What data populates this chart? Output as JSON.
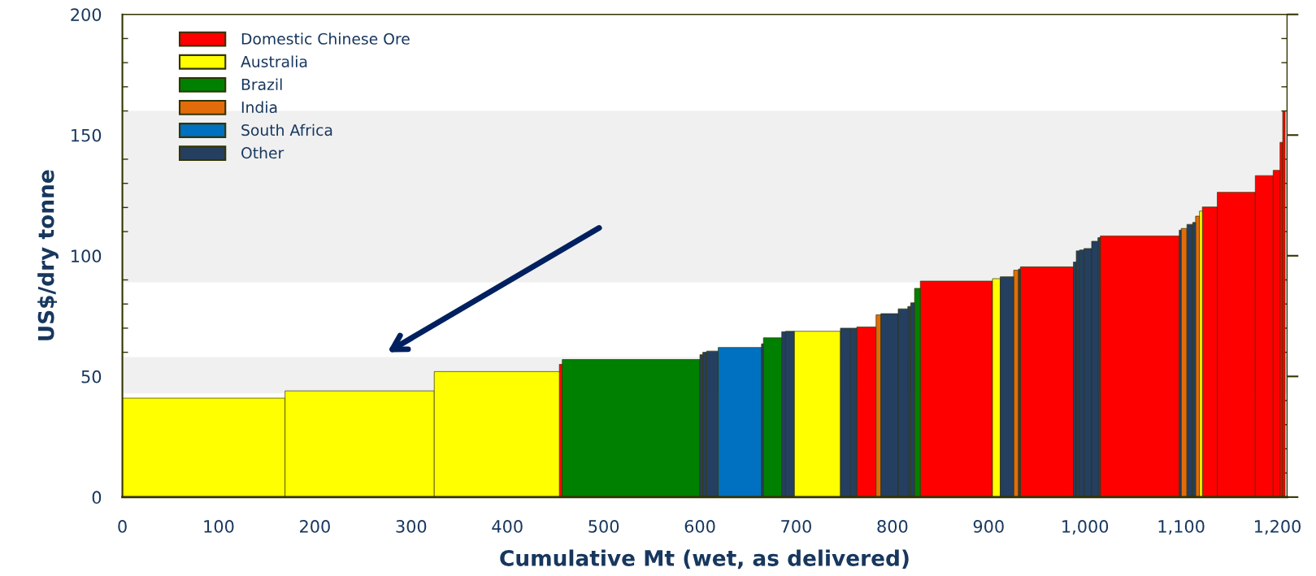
{
  "chart_data": {
    "type": "histogram",
    "xlabel": "Cumulative Mt (wet, as delivered)",
    "ylabel": "US$/dry tonne",
    "bins": [
      0,
      169,
      324,
      454,
      457,
      600,
      603,
      607,
      619,
      664,
      666,
      685,
      689,
      698,
      746,
      756,
      763,
      783,
      788,
      806,
      816,
      819,
      823,
      829,
      904,
      912,
      926,
      931,
      933,
      988,
      991,
      994.5,
      999,
      1007,
      1013.5,
      1016,
      1098,
      1100,
      1106,
      1112,
      1115,
      1119,
      1122,
      1137.5,
      1177,
      1195.6,
      1202.7,
      1205.5,
      1208
    ],
    "series": [
      {
        "name": "Domestic Chinese Ore",
        "color": "#ff0000",
        "values": [
          null,
          null,
          null,
          55,
          null,
          null,
          null,
          null,
          null,
          null,
          null,
          null,
          null,
          null,
          null,
          null,
          70.5,
          null,
          null,
          null,
          null,
          null,
          null,
          89.5,
          null,
          null,
          null,
          null,
          95.4,
          null,
          null,
          null,
          null,
          null,
          null,
          108.2,
          null,
          null,
          null,
          null,
          null,
          null,
          120.2,
          126.3,
          133.2,
          135.4,
          147,
          160
        ]
      },
      {
        "name": "Australia",
        "color": "#ffff00",
        "values": [
          41,
          44,
          52,
          null,
          null,
          null,
          null,
          null,
          null,
          null,
          null,
          null,
          null,
          68.7,
          null,
          null,
          null,
          null,
          null,
          null,
          null,
          null,
          null,
          null,
          90.5,
          null,
          null,
          null,
          null,
          null,
          null,
          null,
          null,
          null,
          null,
          null,
          null,
          null,
          null,
          null,
          null,
          118.5,
          null,
          null,
          null,
          null,
          null,
          null
        ]
      },
      {
        "name": "Brazil",
        "color": "#008000",
        "values": [
          null,
          null,
          null,
          null,
          57,
          null,
          null,
          null,
          null,
          null,
          66,
          null,
          null,
          null,
          null,
          null,
          null,
          null,
          null,
          null,
          null,
          null,
          86.5,
          null,
          null,
          null,
          null,
          null,
          null,
          null,
          null,
          null,
          null,
          null,
          null,
          null,
          null,
          null,
          null,
          null,
          null,
          null,
          null,
          null,
          null,
          null,
          null,
          null
        ]
      },
      {
        "name": "India",
        "color": "#e36c0a",
        "values": [
          null,
          null,
          null,
          null,
          null,
          null,
          null,
          null,
          null,
          null,
          null,
          null,
          null,
          null,
          null,
          null,
          null,
          75.5,
          null,
          null,
          null,
          null,
          null,
          null,
          null,
          null,
          94,
          null,
          null,
          null,
          null,
          null,
          null,
          null,
          null,
          null,
          null,
          111.3,
          null,
          null,
          116.4,
          null,
          null,
          null,
          null,
          null,
          null,
          null
        ]
      },
      {
        "name": "South Africa",
        "color": "#0070c0",
        "values": [
          null,
          null,
          null,
          null,
          null,
          null,
          null,
          null,
          62,
          null,
          null,
          null,
          null,
          null,
          null,
          null,
          null,
          null,
          null,
          null,
          null,
          null,
          null,
          null,
          null,
          null,
          null,
          null,
          null,
          null,
          null,
          null,
          null,
          null,
          null,
          null,
          null,
          null,
          null,
          null,
          null,
          null,
          null,
          null,
          null,
          null,
          null,
          null
        ]
      },
      {
        "name": "Other",
        "color": "#243f60",
        "values": [
          null,
          null,
          null,
          null,
          null,
          59,
          60,
          60.5,
          null,
          63.5,
          null,
          68.5,
          68.7,
          null,
          70,
          70,
          null,
          null,
          76,
          78,
          79,
          80.5,
          null,
          null,
          null,
          91.3,
          null,
          94.5,
          null,
          97.4,
          102,
          102.4,
          103,
          106,
          107.5,
          null,
          110.6,
          null,
          113,
          113.8,
          null,
          null,
          null,
          null,
          null,
          null,
          null,
          null
        ]
      }
    ],
    "xlim": [
      0,
      1210
    ],
    "xticks": [
      0,
      {
        "value": 20,
        "label": null
      },
      {
        "value": 40,
        "label": null
      },
      {
        "value": 60,
        "label": null
      },
      {
        "value": 80,
        "label": null
      },
      100,
      {
        "value": 120,
        "label": null
      },
      {
        "value": 140,
        "label": null
      },
      {
        "value": 160,
        "label": null
      },
      {
        "value": 180,
        "label": null
      },
      200,
      {
        "value": 220,
        "label": null
      },
      {
        "value": 240,
        "label": null
      },
      {
        "value": 260,
        "label": null
      },
      {
        "value": 280,
        "label": null
      },
      300,
      {
        "value": 320,
        "label": null
      },
      {
        "value": 340,
        "label": null
      },
      {
        "value": 360,
        "label": null
      },
      {
        "value": 380,
        "label": null
      },
      400,
      {
        "value": 420,
        "label": null
      },
      {
        "value": 440,
        "label": null
      },
      {
        "value": 460,
        "label": null
      },
      {
        "value": 480,
        "label": null
      },
      500,
      {
        "value": 520,
        "label": null
      },
      {
        "value": 540,
        "label": null
      },
      {
        "value": 560,
        "label": null
      },
      {
        "value": 580,
        "label": null
      },
      600,
      {
        "value": 620,
        "label": null
      },
      {
        "value": 640,
        "label": null
      },
      {
        "value": 660,
        "label": null
      },
      {
        "value": 680,
        "label": null
      },
      700,
      {
        "value": 720,
        "label": null
      },
      {
        "value": 740,
        "label": null
      },
      {
        "value": 760,
        "label": null
      },
      {
        "value": 780,
        "label": null
      },
      800,
      {
        "value": 820,
        "label": null
      },
      {
        "value": 840,
        "label": null
      },
      {
        "value": 860,
        "label": null
      },
      {
        "value": 880,
        "label": null
      },
      900,
      {
        "value": 920,
        "label": null
      },
      {
        "value": 940,
        "label": null
      },
      {
        "value": 960,
        "label": null
      },
      {
        "value": 980,
        "label": null
      },
      {
        "value": 1000,
        "label": "1,000"
      },
      {
        "value": 1020,
        "label": null
      },
      {
        "value": 1040,
        "label": null
      },
      {
        "value": 1060,
        "label": null
      },
      {
        "value": 1080,
        "label": null
      },
      {
        "value": 1100,
        "label": "1,100"
      },
      {
        "value": 1120,
        "label": null
      },
      {
        "value": 1140,
        "label": null
      },
      {
        "value": 1160,
        "label": null
      },
      {
        "value": 1180,
        "label": null
      },
      {
        "value": 1200,
        "label": "1,200"
      }
    ],
    "ylim": [
      0,
      200
    ],
    "yticks": [
      0,
      {
        "value": 10,
        "label": null
      },
      {
        "value": 20,
        "label": null
      },
      {
        "value": 30,
        "label": null
      },
      {
        "value": 40,
        "label": null
      },
      50,
      {
        "value": 60,
        "label": null
      },
      {
        "value": 70,
        "label": null
      },
      {
        "value": 80,
        "label": null
      },
      {
        "value": 90,
        "label": null
      },
      100,
      {
        "value": 110,
        "label": null
      },
      {
        "value": 120,
        "label": null
      },
      {
        "value": 130,
        "label": null
      },
      {
        "value": 140,
        "label": null
      },
      150,
      {
        "value": 160,
        "label": null
      },
      {
        "value": 170,
        "label": null
      },
      {
        "value": 180,
        "label": null
      },
      {
        "value": 190,
        "label": null
      },
      200
    ],
    "bands": [
      {
        "axis": "y",
        "from": 43,
        "to": 58,
        "color": "#f0f0f0"
      },
      {
        "axis": "y",
        "from": 89,
        "to": 160,
        "color": "#f0f0f0"
      }
    ],
    "legend": "top left",
    "grid": false
  }
}
